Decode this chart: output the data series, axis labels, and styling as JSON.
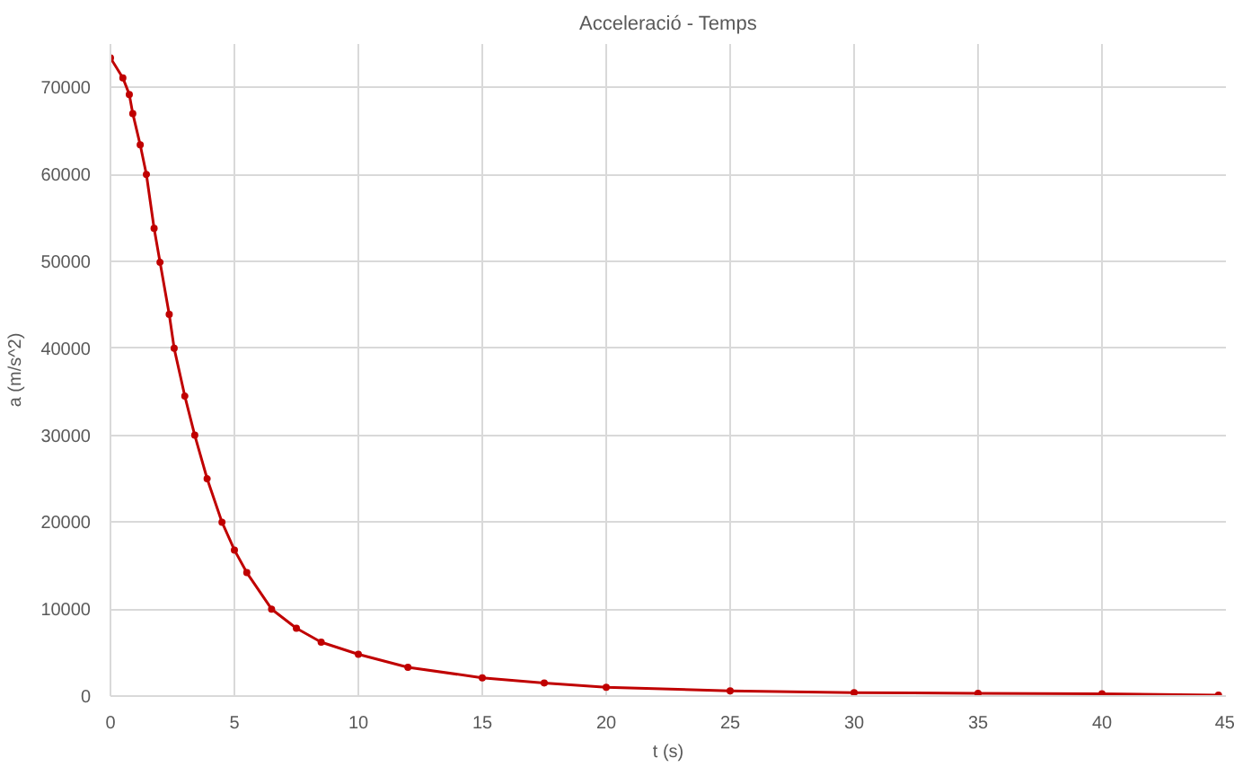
{
  "chart_data": {
    "type": "line",
    "title": "Acceleració - Temps",
    "xlabel": "t (s)",
    "ylabel": "a (m/s^2)",
    "xlim": [
      0,
      45
    ],
    "xticks": [
      0,
      5,
      10,
      15,
      20,
      25,
      30,
      35,
      40,
      45
    ],
    "ylim": [
      0,
      75000
    ],
    "yticks": [
      0,
      10000,
      20000,
      30000,
      40000,
      50000,
      60000,
      70000
    ],
    "grid": true,
    "marker": "circle",
    "line_style": "solid",
    "series": [
      {
        "color": "#c00000",
        "x": [
          0,
          0.5,
          0.76,
          0.9,
          1.2,
          1.45,
          1.76,
          2.0,
          2.37,
          2.57,
          3.0,
          3.4,
          3.9,
          4.5,
          5.0,
          5.5,
          6.5,
          7.5,
          8.5,
          10,
          12,
          15,
          17.5,
          20,
          25,
          30,
          35,
          40,
          44.7
        ],
        "values": [
          73400,
          71100,
          69200,
          67000,
          63400,
          60000,
          53800,
          49900,
          43900,
          40000,
          34500,
          30000,
          25000,
          20000,
          16800,
          14200,
          10000,
          7800,
          6200,
          4800,
          3300,
          2100,
          1500,
          1000,
          600,
          400,
          300,
          250,
          100
        ]
      }
    ]
  }
}
